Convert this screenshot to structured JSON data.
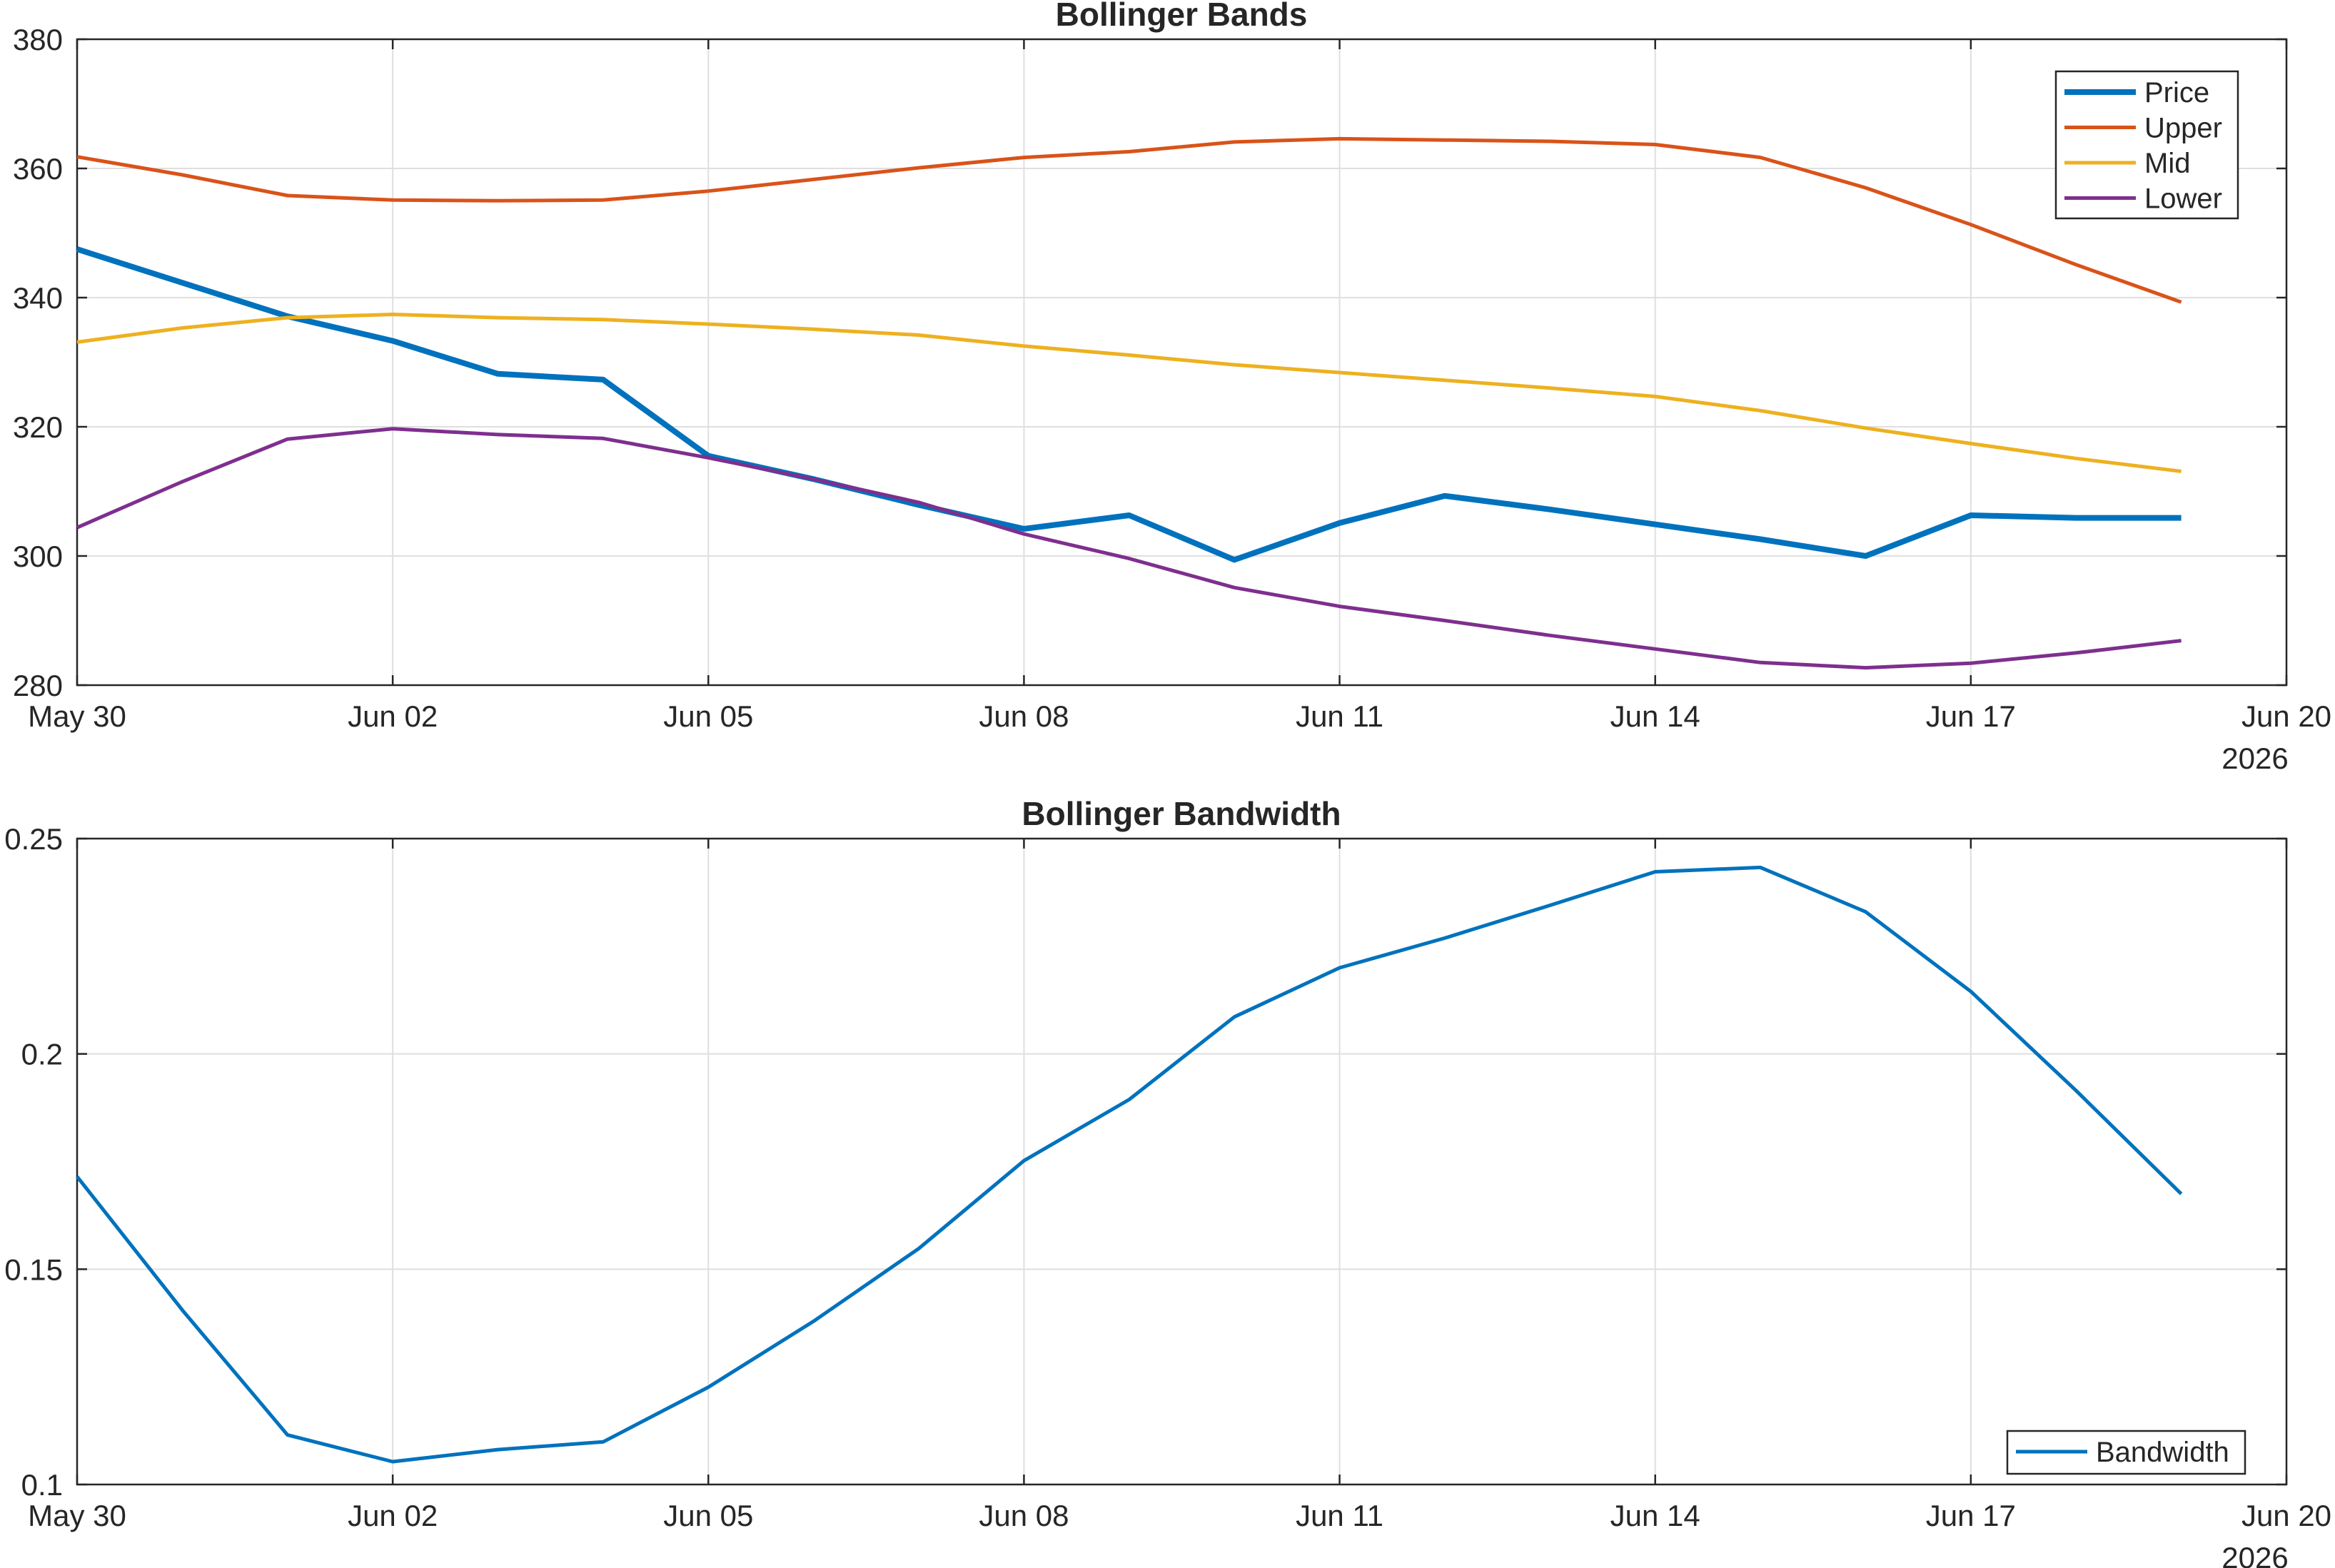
{
  "chart_data": [
    {
      "type": "line",
      "title": "Bollinger Bands",
      "x": [
        "May 30",
        "May 31",
        "Jun 01",
        "Jun 02",
        "Jun 03",
        "Jun 04",
        "Jun 05",
        "Jun 06",
        "Jun 07",
        "Jun 08",
        "Jun 09",
        "Jun 10",
        "Jun 11",
        "Jun 12",
        "Jun 13",
        "Jun 14",
        "Jun 15",
        "Jun 16",
        "Jun 17",
        "Jun 18",
        "Jun 19"
      ],
      "xlim": [
        "May 30",
        "Jun 20"
      ],
      "xticks": [
        "May 30",
        "Jun 02",
        "Jun 05",
        "Jun 08",
        "Jun 11",
        "Jun 14",
        "Jun 17",
        "Jun 20"
      ],
      "year_label": "2026",
      "ylim": [
        280,
        380
      ],
      "yticks": [
        "280",
        "300",
        "320",
        "340",
        "360",
        "380"
      ],
      "grid": true,
      "legend": "top-right",
      "series": [
        {
          "name": "Price",
          "color": "#0072BD",
          "values": [
            347.5,
            342.3,
            337.1,
            333.3,
            328.2,
            327.3,
            315.5,
            311.9,
            307.9,
            304.2,
            306.3,
            299.4,
            305.1,
            309.3,
            307.2,
            304.9,
            302.6,
            300.0,
            306.3,
            305.9,
            305.9
          ]
        },
        {
          "name": "Upper",
          "color": "#D95319",
          "values": [
            361.8,
            359.0,
            355.8,
            355.1,
            355.0,
            355.1,
            356.5,
            358.3,
            360.1,
            361.7,
            362.6,
            364.1,
            364.6,
            364.4,
            364.2,
            363.7,
            361.7,
            357.0,
            351.3,
            345.1,
            339.3
          ]
        },
        {
          "name": "Mid",
          "color": "#EDB120",
          "values": [
            333.1,
            335.3,
            336.9,
            337.4,
            336.9,
            336.6,
            335.9,
            335.1,
            334.2,
            332.5,
            331.1,
            329.6,
            328.4,
            327.2,
            326.0,
            324.7,
            322.5,
            319.8,
            317.4,
            315.1,
            313.1
          ]
        },
        {
          "name": "Lower",
          "color": "#7E2F8E",
          "values": [
            304.4,
            311.5,
            318.1,
            319.7,
            318.8,
            318.2,
            315.2,
            311.9,
            308.3,
            303.4,
            299.6,
            295.1,
            292.2,
            290.0,
            287.7,
            285.6,
            283.5,
            282.7,
            283.4,
            285.0,
            286.9
          ]
        }
      ]
    },
    {
      "type": "line",
      "title": "Bollinger Bandwidth",
      "x": [
        "May 30",
        "May 31",
        "Jun 01",
        "Jun 02",
        "Jun 03",
        "Jun 04",
        "Jun 05",
        "Jun 06",
        "Jun 07",
        "Jun 08",
        "Jun 09",
        "Jun 10",
        "Jun 11",
        "Jun 12",
        "Jun 13",
        "Jun 14",
        "Jun 15",
        "Jun 16",
        "Jun 17",
        "Jun 18",
        "Jun 19"
      ],
      "xlim": [
        "May 30",
        "Jun 20"
      ],
      "xticks": [
        "May 30",
        "Jun 02",
        "Jun 05",
        "Jun 08",
        "Jun 11",
        "Jun 14",
        "Jun 17",
        "Jun 20"
      ],
      "year_label": "2026",
      "ylim": [
        0.1,
        0.25
      ],
      "yticks": [
        "0.1",
        "0.15",
        "0.2",
        "0.25"
      ],
      "grid": true,
      "legend": "bottom-right",
      "series": [
        {
          "name": "Bandwidth",
          "color": "#0072BD",
          "values": [
            0.1715,
            0.1405,
            0.1115,
            0.1053,
            0.1081,
            0.1099,
            0.1226,
            0.1379,
            0.1548,
            0.1752,
            0.1894,
            0.2086,
            0.22,
            0.2269,
            0.2345,
            0.2423,
            0.2433,
            0.233,
            0.2145,
            0.1915,
            0.1675
          ]
        }
      ]
    }
  ]
}
